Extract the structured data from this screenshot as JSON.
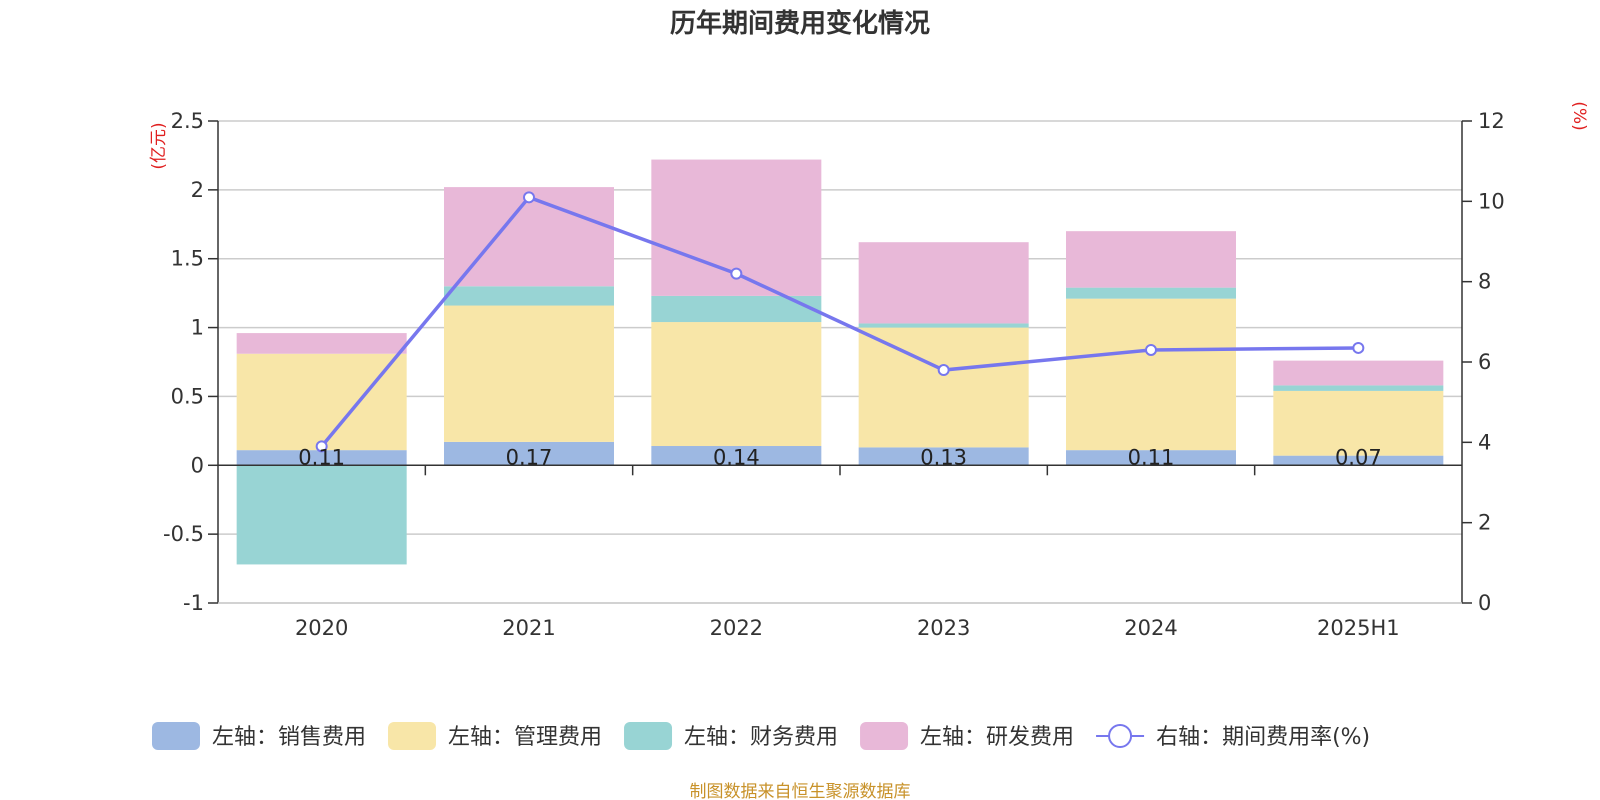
{
  "chart_data": {
    "type": "bar",
    "stacked": true,
    "title": "历年期间费用变化情况",
    "left_axis_unit": "(亿元)",
    "right_axis_unit": "(%)",
    "categories": [
      "2020",
      "2021",
      "2022",
      "2023",
      "2024",
      "2025H1"
    ],
    "y_left": {
      "min": -1,
      "max": 2.5,
      "ticks": [
        -1,
        -0.5,
        0,
        0.5,
        1,
        1.5,
        2,
        2.5
      ],
      "tick_labels": [
        "-1",
        "-0.5",
        "0",
        "0.5",
        "1",
        "1.5",
        "2",
        "2.5"
      ]
    },
    "y_right": {
      "min": 0,
      "max": 12,
      "ticks": [
        0,
        2,
        4,
        6,
        8,
        10,
        12
      ],
      "tick_labels": [
        "0",
        "2",
        "4",
        "6",
        "8",
        "10",
        "12"
      ]
    },
    "series": [
      {
        "name": "左轴：销售费用",
        "type": "bar",
        "axis": "left",
        "color": "#9db8e2",
        "values": [
          0.11,
          0.17,
          0.14,
          0.13,
          0.11,
          0.07
        ]
      },
      {
        "name": "左轴：管理费用",
        "type": "bar",
        "axis": "left",
        "color": "#f8e6a8",
        "values": [
          0.7,
          0.99,
          0.9,
          0.87,
          1.1,
          0.47
        ]
      },
      {
        "name": "左轴：财务费用",
        "type": "bar",
        "axis": "left",
        "color": "#98d4d4",
        "values": [
          -0.72,
          0.14,
          0.19,
          0.03,
          0.08,
          0.04
        ]
      },
      {
        "name": "左轴：研发费用",
        "type": "bar",
        "axis": "left",
        "color": "#e8b8d8",
        "values": [
          0.15,
          0.72,
          0.99,
          0.59,
          0.41,
          0.18
        ]
      },
      {
        "name": "右轴：期间费用率(%)",
        "type": "line",
        "axis": "right",
        "color": "#7777ee",
        "values": [
          3.9,
          10.1,
          8.2,
          5.8,
          6.3,
          6.35
        ]
      }
    ],
    "data_labels": [
      "0.11",
      "0.17",
      "0.14",
      "0.13",
      "0.11",
      "0.07"
    ],
    "grid": true,
    "legend_position": "bottom"
  },
  "source_note": "制图数据来自恒生聚源数据库"
}
